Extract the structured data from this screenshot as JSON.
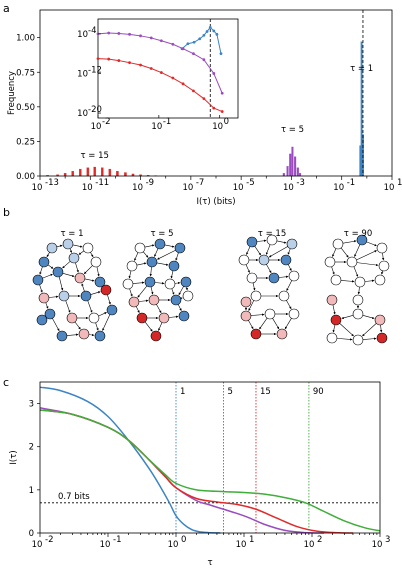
{
  "panels": {
    "a": "a",
    "b": "b",
    "c": "c"
  },
  "colors": {
    "tau1": "#3c84c4",
    "tau5": "#9a4bc0",
    "tau15": "#e02a2a",
    "tau90": "#3fae3a",
    "dashed": "#000000"
  },
  "chart_data": [
    {
      "id": "a",
      "type": "bar",
      "title": "",
      "xlabel": "I(τ) (bits)",
      "ylabel": "Frequency",
      "xscale": "log",
      "xlim": [
        1e-13,
        10
      ],
      "ylim": [
        0,
        1.2
      ],
      "xtick_labels": [
        "10",
        "-13",
        "10",
        "-11",
        "10",
        "-9",
        "10",
        "-7",
        "10",
        "-5",
        "10",
        "-3",
        "10",
        "-1",
        "10",
        "1"
      ],
      "ytick_labels": [
        "0.00",
        "0.25",
        "0.50",
        "0.75",
        "1.00"
      ],
      "yticks": [
        0,
        0.25,
        0.5,
        0.75,
        1.0
      ],
      "series": [
        {
          "name": "τ = 1",
          "label": "τ = 1",
          "color": "#3c84c4",
          "bins": [
            {
              "x": 0.55,
              "y": 0.22
            },
            {
              "x": 0.62,
              "y": 0.97
            },
            {
              "x": 0.7,
              "y": 0.3
            }
          ]
        },
        {
          "name": "τ = 5",
          "label": "τ = 5",
          "color": "#9a4bc0",
          "bins": [
            {
              "x": 0.0005,
              "y": 0.02
            },
            {
              "x": 0.0007,
              "y": 0.07
            },
            {
              "x": 0.0009,
              "y": 0.16
            },
            {
              "x": 0.0011,
              "y": 0.21
            },
            {
              "x": 0.0014,
              "y": 0.14
            },
            {
              "x": 0.0018,
              "y": 0.06
            },
            {
              "x": 0.0022,
              "y": 0.02
            }
          ]
        },
        {
          "name": "τ = 15",
          "label": "τ = 15",
          "color": "#e02a2a",
          "bins": [
            {
              "x": 2e-13,
              "y": 0.005
            },
            {
              "x": 5e-13,
              "y": 0.01
            },
            {
              "x": 1e-12,
              "y": 0.02
            },
            {
              "x": 2e-12,
              "y": 0.035
            },
            {
              "x": 4e-12,
              "y": 0.05
            },
            {
              "x": 8e-12,
              "y": 0.06
            },
            {
              "x": 1.5e-11,
              "y": 0.065
            },
            {
              "x": 3e-11,
              "y": 0.06
            },
            {
              "x": 6e-11,
              "y": 0.05
            },
            {
              "x": 1.2e-10,
              "y": 0.035
            },
            {
              "x": 2.5e-10,
              "y": 0.025
            },
            {
              "x": 5e-10,
              "y": 0.015
            },
            {
              "x": 1e-09,
              "y": 0.01
            },
            {
              "x": 2e-09,
              "y": 0.006
            },
            {
              "x": 4e-09,
              "y": 0.003
            }
          ]
        }
      ],
      "vline": 0.7,
      "inset": {
        "xscale": "log",
        "yscale": "log",
        "xlim": [
          0.01,
          2
        ],
        "ylim": [
          1e-21,
          0.1
        ],
        "xtick_labels": [
          "10",
          "-2",
          "10",
          "-1",
          "10",
          "0"
        ],
        "ytick_labels": [
          "10",
          "-4",
          "10",
          "-12",
          "10",
          "-20"
        ],
        "yticks": [
          0.0001,
          1e-12,
          1e-20
        ],
        "vline": 0.7,
        "series": [
          {
            "name": "τ = 1",
            "color": "#3c84c4",
            "x": [
              0.24,
              0.3,
              0.38,
              0.47,
              0.55,
              0.62,
              0.7,
              0.8,
              0.9,
              1.05
            ],
            "y": [
              1e-07,
              1e-06,
              2e-06,
              1e-05,
              5e-05,
              0.0003,
              0.002,
              0.0004,
              8e-05,
              1e-08
            ]
          },
          {
            "name": "τ = 5",
            "color": "#9a4bc0",
            "x": [
              0.01,
              0.015,
              0.022,
              0.033,
              0.05,
              0.075,
              0.11,
              0.17,
              0.25,
              0.37,
              0.55,
              0.8,
              1.1
            ],
            "y": [
              0.0001,
              0.00015,
              0.00012,
              8e-05,
              4e-05,
              1.5e-05,
              4e-06,
              8e-07,
              1e-07,
              1e-08,
              6e-10,
              1e-12,
              1e-16
            ]
          },
          {
            "name": "τ = 15",
            "color": "#e02a2a",
            "x": [
              0.01,
              0.015,
              0.022,
              0.033,
              0.05,
              0.075,
              0.11,
              0.17,
              0.25,
              0.37,
              0.55,
              0.8,
              1.1
            ],
            "y": [
              1e-09,
              8e-10,
              4e-10,
              1.5e-10,
              5e-11,
              1e-11,
              1.5e-12,
              1.2e-13,
              8e-15,
              3e-16,
              8e-18,
              1e-19,
              2e-20
            ]
          }
        ]
      }
    },
    {
      "id": "c",
      "type": "line",
      "title": "",
      "xlabel": "τ",
      "ylabel": "I(τ)",
      "xscale": "log",
      "xlim": [
        0.01,
        1000
      ],
      "ylim": [
        0,
        3.5
      ],
      "xtick_labels": [
        "10",
        "-2",
        "10",
        "-1",
        "10",
        "0",
        "10",
        "1",
        "10",
        "2",
        "10",
        "3"
      ],
      "ytick_labels": [
        "0",
        "1",
        "2",
        "3"
      ],
      "yticks": [
        0,
        1,
        2,
        3
      ],
      "hline": 0.7,
      "hline_label": "0.7 bits",
      "vlines": [
        {
          "x": 1,
          "label": "1",
          "color": "#3c84c4"
        },
        {
          "x": 5,
          "label": "5",
          "color": "#9a4bc0"
        },
        {
          "x": 15,
          "label": "15",
          "color": "#e02a2a"
        },
        {
          "x": 90,
          "label": "90",
          "color": "#3fae3a"
        }
      ],
      "series": [
        {
          "name": "τ = 1",
          "color": "#3c84c4",
          "x": [
            0.01,
            0.02,
            0.05,
            0.1,
            0.2,
            0.4,
            0.6,
            0.8,
            1.0,
            1.3,
            1.7,
            2.2,
            3.0,
            4.5
          ],
          "y": [
            3.38,
            3.3,
            3.05,
            2.7,
            2.15,
            1.5,
            1.05,
            0.7,
            0.4,
            0.2,
            0.08,
            0.03,
            0.01,
            0.0
          ]
        },
        {
          "name": "τ = 5",
          "color": "#9a4bc0",
          "x": [
            0.01,
            0.03,
            0.1,
            0.2,
            0.4,
            0.7,
            1,
            2,
            3,
            5,
            8,
            12,
            20,
            40,
            80,
            150
          ],
          "y": [
            2.9,
            2.75,
            2.45,
            2.15,
            1.7,
            1.3,
            1.05,
            0.75,
            0.66,
            0.55,
            0.45,
            0.35,
            0.2,
            0.06,
            0.01,
            0.0
          ]
        },
        {
          "name": "τ = 15",
          "color": "#e02a2a",
          "x": [
            0.01,
            0.03,
            0.1,
            0.2,
            0.4,
            0.7,
            1,
            2,
            4,
            8,
            15,
            30,
            60,
            120,
            250,
            400
          ],
          "y": [
            2.85,
            2.75,
            2.45,
            2.15,
            1.7,
            1.3,
            1.05,
            0.8,
            0.72,
            0.66,
            0.55,
            0.35,
            0.15,
            0.04,
            0.005,
            0.0
          ]
        },
        {
          "name": "τ = 90",
          "color": "#3fae3a",
          "x": [
            0.01,
            0.03,
            0.1,
            0.2,
            0.4,
            0.7,
            1,
            2,
            5,
            10,
            20,
            40,
            80,
            150,
            300,
            600,
            1000
          ],
          "y": [
            2.85,
            2.75,
            2.45,
            2.15,
            1.7,
            1.35,
            1.15,
            1.0,
            0.96,
            0.94,
            0.9,
            0.82,
            0.7,
            0.5,
            0.28,
            0.12,
            0.05
          ]
        }
      ]
    }
  ],
  "networks": [
    {
      "label": "τ = 1",
      "color": "#3c84c4"
    },
    {
      "label": "τ = 5",
      "color": "#9a4bc0"
    },
    {
      "label": "τ = 15",
      "color": "#e02a2a"
    },
    {
      "label": "τ = 90",
      "color": "#3fae3a"
    }
  ]
}
